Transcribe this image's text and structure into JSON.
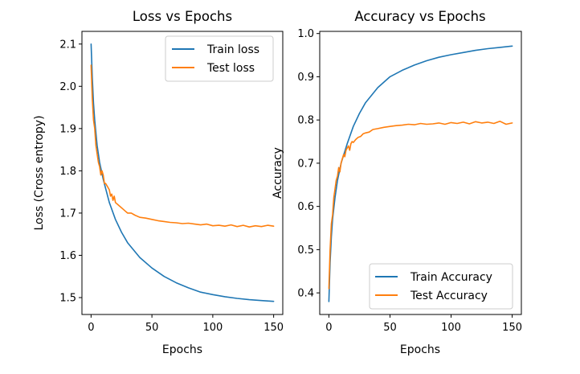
{
  "chart_data": [
    {
      "type": "line",
      "title": "Loss vs Epochs",
      "xlabel": "Epochs",
      "ylabel": "Loss (Cross entropy)",
      "xlim": [
        -7.5,
        157.5
      ],
      "ylim": [
        1.46,
        2.13
      ],
      "xticks": [
        0,
        50,
        100,
        150
      ],
      "yticks": [
        1.5,
        1.6,
        1.7,
        1.8,
        1.9,
        2.0,
        2.1
      ],
      "ytick_labels": [
        "1.5",
        "1.6",
        "1.7",
        "1.8",
        "1.9",
        "2.0",
        "2.1"
      ],
      "grid": false,
      "legend_position": "upper-right",
      "series": [
        {
          "name": "Train loss",
          "color": "#1f77b4",
          "x": [
            0,
            1,
            2,
            3,
            5,
            7,
            10,
            15,
            20,
            25,
            30,
            40,
            50,
            60,
            70,
            80,
            90,
            100,
            110,
            120,
            130,
            140,
            150
          ],
          "values": [
            2.1,
            2.02,
            1.96,
            1.92,
            1.86,
            1.82,
            1.78,
            1.725,
            1.685,
            1.655,
            1.63,
            1.595,
            1.57,
            1.55,
            1.535,
            1.523,
            1.513,
            1.507,
            1.502,
            1.498,
            1.495,
            1.493,
            1.491
          ]
        },
        {
          "name": "Test loss",
          "color": "#ff7f0e",
          "x": [
            0,
            1,
            2,
            3,
            4,
            5,
            6,
            7,
            8,
            9,
            10,
            11,
            12,
            13,
            14,
            15,
            16,
            17,
            18,
            19,
            20,
            22,
            24,
            26,
            28,
            30,
            33,
            36,
            40,
            45,
            50,
            55,
            60,
            65,
            70,
            75,
            80,
            85,
            90,
            95,
            100,
            105,
            110,
            115,
            120,
            125,
            130,
            135,
            140,
            145,
            150
          ],
          "values": [
            2.05,
            1.97,
            1.92,
            1.9,
            1.86,
            1.84,
            1.82,
            1.81,
            1.79,
            1.8,
            1.79,
            1.77,
            1.77,
            1.765,
            1.76,
            1.755,
            1.74,
            1.745,
            1.73,
            1.74,
            1.725,
            1.72,
            1.715,
            1.71,
            1.705,
            1.7,
            1.7,
            1.695,
            1.69,
            1.688,
            1.685,
            1.682,
            1.68,
            1.678,
            1.677,
            1.675,
            1.676,
            1.674,
            1.672,
            1.674,
            1.67,
            1.671,
            1.669,
            1.672,
            1.668,
            1.671,
            1.667,
            1.67,
            1.668,
            1.671,
            1.669
          ]
        }
      ]
    },
    {
      "type": "line",
      "title": "Accuracy vs Epochs",
      "xlabel": "Epochs",
      "ylabel": "Accuracy",
      "xlim": [
        -7.5,
        157.5
      ],
      "ylim": [
        0.35,
        1.005
      ],
      "xticks": [
        0,
        50,
        100,
        150
      ],
      "yticks": [
        0.4,
        0.5,
        0.6,
        0.7,
        0.8,
        0.9,
        1.0
      ],
      "ytick_labels": [
        "0.4",
        "0.5",
        "0.6",
        "0.7",
        "0.8",
        "0.9",
        "1.0"
      ],
      "grid": false,
      "legend_position": "lower-right",
      "series": [
        {
          "name": "Train Accuracy",
          "color": "#1f77b4",
          "x": [
            0,
            1,
            2,
            3,
            5,
            7,
            10,
            15,
            20,
            25,
            30,
            40,
            50,
            60,
            70,
            80,
            90,
            100,
            110,
            120,
            130,
            140,
            150
          ],
          "values": [
            0.38,
            0.47,
            0.53,
            0.57,
            0.62,
            0.66,
            0.7,
            0.745,
            0.785,
            0.815,
            0.84,
            0.875,
            0.9,
            0.915,
            0.927,
            0.937,
            0.945,
            0.951,
            0.956,
            0.961,
            0.965,
            0.968,
            0.971
          ]
        },
        {
          "name": "Test Accuracy",
          "color": "#ff7f0e",
          "x": [
            0,
            1,
            2,
            3,
            4,
            5,
            6,
            7,
            8,
            9,
            10,
            11,
            12,
            13,
            14,
            15,
            16,
            17,
            18,
            19,
            20,
            22,
            24,
            26,
            28,
            30,
            33,
            36,
            40,
            45,
            50,
            55,
            60,
            65,
            70,
            75,
            80,
            85,
            90,
            95,
            100,
            105,
            110,
            115,
            120,
            125,
            130,
            135,
            140,
            145,
            150
          ],
          "values": [
            0.41,
            0.5,
            0.56,
            0.58,
            0.62,
            0.64,
            0.66,
            0.67,
            0.69,
            0.68,
            0.7,
            0.71,
            0.72,
            0.715,
            0.73,
            0.735,
            0.74,
            0.73,
            0.745,
            0.75,
            0.748,
            0.755,
            0.76,
            0.762,
            0.768,
            0.77,
            0.772,
            0.778,
            0.78,
            0.783,
            0.785,
            0.787,
            0.788,
            0.79,
            0.789,
            0.792,
            0.79,
            0.791,
            0.793,
            0.79,
            0.794,
            0.792,
            0.795,
            0.791,
            0.796,
            0.793,
            0.795,
            0.792,
            0.797,
            0.79,
            0.793
          ]
        }
      ]
    }
  ]
}
